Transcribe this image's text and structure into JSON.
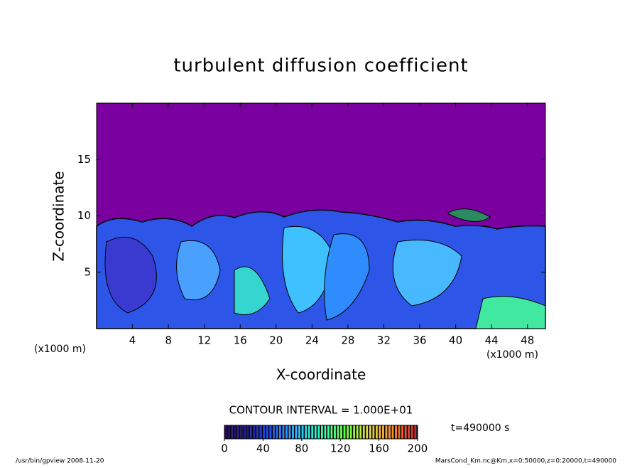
{
  "chart_data": {
    "type": "contour",
    "title": "turbulent diffusion coefficient",
    "x_label": "X-coordinate",
    "y_label": "Z-coordinate",
    "x_units": [
      "(x1000 m)",
      "(x1000 m)"
    ],
    "xlim": [
      0,
      50
    ],
    "xticks": [
      4,
      8,
      12,
      16,
      20,
      24,
      28,
      32,
      36,
      40,
      44,
      48
    ],
    "ylim": [
      0,
      20
    ],
    "yticks": [
      5,
      10,
      15
    ],
    "background_color": "#7a00a0",
    "contour_interval": "CONTOUR INTERVAL = 1.000E+01",
    "time": "t=490000 s",
    "colorbar": {
      "lim": [
        0,
        200
      ],
      "ticks": [
        0,
        40,
        80,
        120,
        160,
        200
      ],
      "colors": [
        "#28006e",
        "#1a1aa0",
        "#2058ff",
        "#30b8ff",
        "#30ffc0",
        "#60ff40",
        "#e0e040",
        "#ff9030",
        "#e02020"
      ]
    },
    "footer_left": "/usr/bin/gpview  2008-11-20",
    "footer_right": "MarsCond_Km.nc@Km,x=0:50000,z=0:20000,t=490000"
  }
}
